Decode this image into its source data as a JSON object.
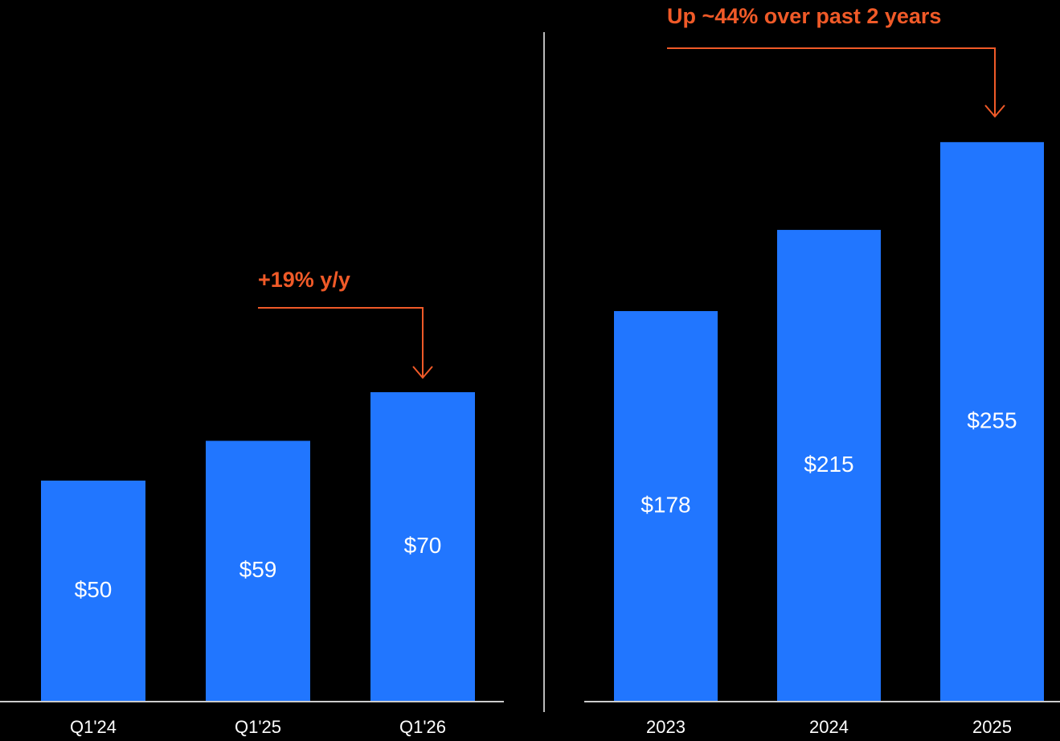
{
  "chart_data": [
    {
      "type": "bar",
      "categories": [
        "Q1'24",
        "Q1'25",
        "Q1'26"
      ],
      "values": [
        50,
        59,
        70
      ],
      "value_labels": [
        "$50",
        "$59",
        "$70"
      ],
      "color": "#2176ff",
      "ylim": [
        0,
        150
      ],
      "annotation": "+19% y/y"
    },
    {
      "type": "bar",
      "categories": [
        "2023",
        "2024",
        "2025"
      ],
      "values": [
        178,
        215,
        255
      ],
      "value_labels": [
        "$178",
        "$215",
        "$255"
      ],
      "color": "#2176ff",
      "ylim": [
        0,
        300
      ],
      "annotation": "Up ~44% over past 2 years"
    }
  ]
}
